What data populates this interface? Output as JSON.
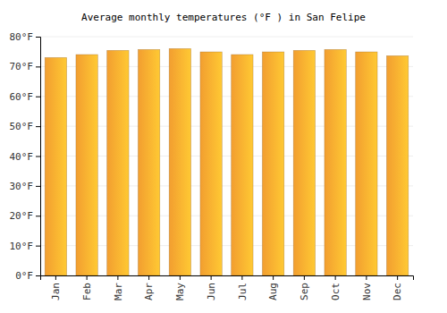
{
  "chart_data": {
    "type": "bar",
    "title": "Average monthly temperatures (°F ) in San Felipe",
    "categories": [
      "Jan",
      "Feb",
      "Mar",
      "Apr",
      "May",
      "Jun",
      "Jul",
      "Aug",
      "Sep",
      "Oct",
      "Nov",
      "Dec"
    ],
    "values": [
      73.0,
      74.0,
      75.4,
      75.7,
      76.0,
      74.9,
      74.0,
      74.9,
      75.4,
      75.7,
      74.9,
      73.6
    ],
    "color": "#ffa733",
    "ylim": [
      0,
      80
    ],
    "yticks": [
      {
        "value": 0,
        "label": "0°F"
      },
      {
        "value": 10,
        "label": "10°F"
      },
      {
        "value": 20,
        "label": "20°F"
      },
      {
        "value": 30,
        "label": "30°F"
      },
      {
        "value": 40,
        "label": "40°F"
      },
      {
        "value": 50,
        "label": "50°F"
      },
      {
        "value": 60,
        "label": "60°F"
      },
      {
        "value": 70,
        "label": "70°F"
      },
      {
        "value": 80,
        "label": "80°F"
      }
    ],
    "grid": true
  }
}
